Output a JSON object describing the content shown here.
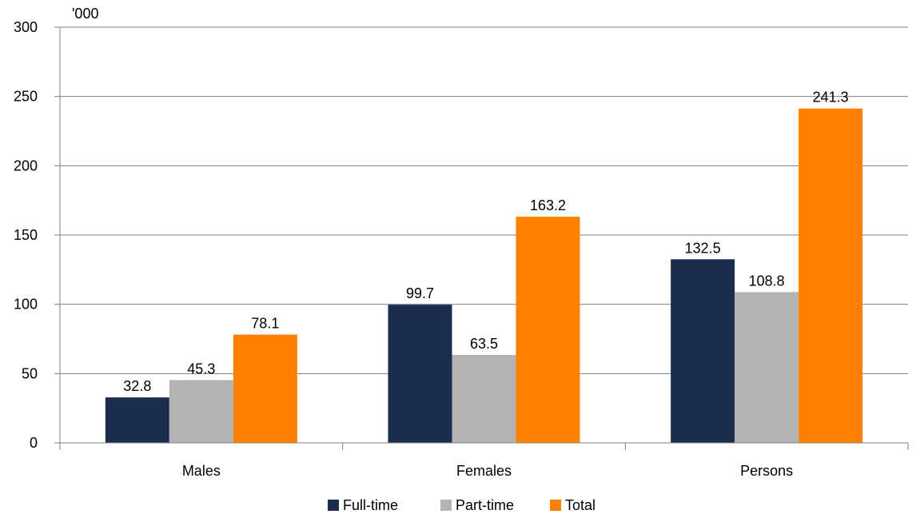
{
  "chart_data": {
    "type": "bar",
    "unit_label": "'000",
    "categories": [
      "Males",
      "Females",
      "Persons"
    ],
    "series": [
      {
        "name": "Full-time",
        "color": "#1b2d4f",
        "values": [
          32.8,
          99.7,
          132.5
        ]
      },
      {
        "name": "Part-time",
        "color": "#b3b3b3",
        "values": [
          45.3,
          63.5,
          108.8
        ]
      },
      {
        "name": "Total",
        "color": "#ff7f00",
        "values": [
          78.1,
          163.2,
          241.3
        ]
      }
    ],
    "ylim": [
      0,
      300
    ],
    "yticks": [
      0,
      50,
      100,
      150,
      200,
      250,
      300
    ],
    "grid": true,
    "legend_position": "bottom"
  }
}
